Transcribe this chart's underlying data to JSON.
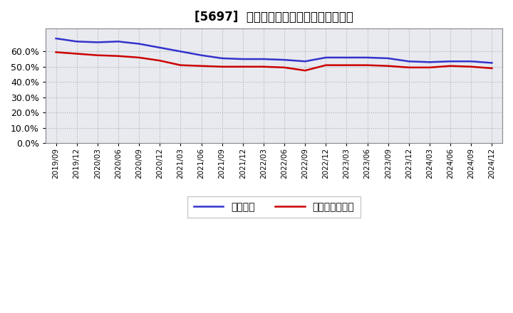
{
  "title": "[5697]  固定比率、固定長期適合率の推移",
  "x_labels": [
    "2019/09",
    "2019/12",
    "2020/03",
    "2020/06",
    "2020/09",
    "2020/12",
    "2021/03",
    "2021/06",
    "2021/09",
    "2021/12",
    "2022/03",
    "2022/06",
    "2022/09",
    "2022/12",
    "2023/03",
    "2023/06",
    "2023/09",
    "2023/12",
    "2024/03",
    "2024/06",
    "2024/09",
    "2024/12"
  ],
  "fixed_ratio": [
    68.5,
    66.5,
    66.0,
    66.5,
    65.0,
    62.5,
    60.0,
    57.5,
    55.5,
    55.0,
    55.0,
    54.5,
    53.5,
    56.0,
    56.0,
    56.0,
    55.5,
    53.5,
    53.0,
    53.5,
    53.5,
    52.5
  ],
  "fixed_long_ratio": [
    59.5,
    58.5,
    57.5,
    57.0,
    56.0,
    54.0,
    51.0,
    50.5,
    50.0,
    50.0,
    50.0,
    49.5,
    47.5,
    51.0,
    51.0,
    51.0,
    50.5,
    49.5,
    49.5,
    50.5,
    50.0,
    49.0
  ],
  "line1_color": "#3333cc",
  "line2_color": "#cc0000",
  "legend1": "固定比率",
  "legend2": "固定長期適合率",
  "ylim": [
    0,
    75
  ],
  "yticks": [
    0,
    10,
    20,
    30,
    40,
    50,
    60
  ],
  "background_color": "#ffffff",
  "grid_color": "#aaaaaa",
  "plot_bg_color": "#e8eaf0"
}
